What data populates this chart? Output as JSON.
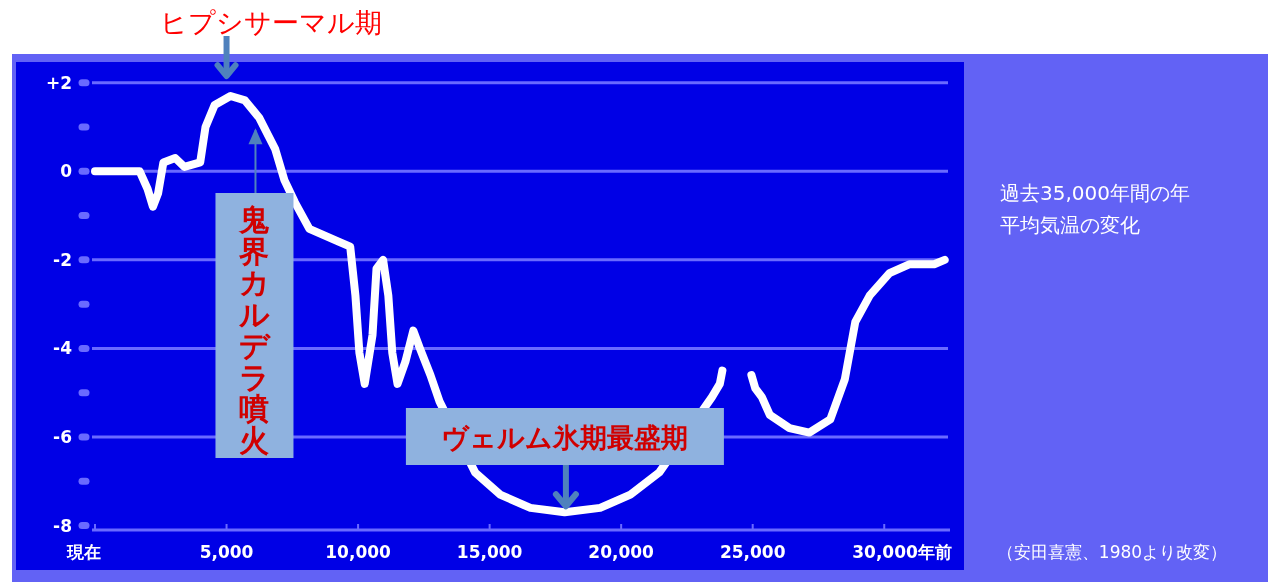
{
  "chart_data": {
    "type": "line",
    "title": "過去35,000年間の年平均気温の変化",
    "series": [
      {
        "color": "#ffffff",
        "x": [
          0,
          1700,
          2000,
          2200,
          2400,
          2600,
          3050,
          3400,
          4000,
          4200,
          4550,
          5150,
          5700,
          6250,
          6850,
          7200,
          7600,
          8150,
          9300,
          9700,
          9900,
          10050,
          10250,
          10550,
          10700,
          10950,
          11150,
          11300,
          11500,
          11800,
          12100,
          12350,
          12750,
          13100,
          14450,
          15400,
          16550,
          17850,
          19200,
          20350,
          21450,
          23450,
          23750,
          23850
        ],
        "values": [
          0,
          0,
          -0.4,
          -0.8,
          -0.5,
          0.2,
          0.3,
          0.1,
          0.2,
          1.0,
          1.5,
          1.7,
          1.6,
          1.2,
          0.5,
          -0.2,
          -0.7,
          -1.3,
          -1.6,
          -1.7,
          -2.8,
          -4.1,
          -4.8,
          -3.7,
          -2.2,
          -2.0,
          -2.8,
          -4.1,
          -4.8,
          -4.3,
          -3.6,
          -4.0,
          -4.6,
          -5.2,
          -6.8,
          -7.3,
          -7.6,
          -7.7,
          -7.6,
          -7.3,
          -6.8,
          -5.1,
          -4.8,
          -4.5
        ]
      },
      {
        "color": "#ffffff",
        "x": [
          24950,
          25100,
          25350,
          25650,
          26400,
          27150,
          27950,
          28500,
          28900,
          29450,
          30200,
          30950,
          31900,
          32300
        ],
        "values": [
          -4.6,
          -4.9,
          -5.1,
          -5.5,
          -5.8,
          -5.9,
          -5.6,
          -4.7,
          -3.4,
          -2.8,
          -2.3,
          -2.1,
          -2.1,
          -2.0
        ]
      }
    ],
    "xlim": [
      0,
      32500
    ],
    "ylim": [
      -8.1,
      2.4
    ],
    "xticks": [
      {
        "value": 0,
        "label": "現在"
      },
      {
        "value": 5000,
        "label": "5,000"
      },
      {
        "value": 10000,
        "label": "10,000"
      },
      {
        "value": 15000,
        "label": "15,000"
      },
      {
        "value": 20000,
        "label": "20,000"
      },
      {
        "value": 25000,
        "label": "25,000"
      },
      {
        "value": 30000,
        "label": "30,000年前"
      }
    ],
    "yticks": [
      {
        "value": -8,
        "label": "-8"
      },
      {
        "value": -7,
        "label": null
      },
      {
        "value": -6,
        "label": "-6"
      },
      {
        "value": -5,
        "label": null
      },
      {
        "value": -4,
        "label": "-4"
      },
      {
        "value": -3,
        "label": null
      },
      {
        "value": -2,
        "label": "-2"
      },
      {
        "value": -1,
        "label": null
      },
      {
        "value": 0,
        "label": "0"
      },
      {
        "value": 1,
        "label": null
      },
      {
        "value": 2,
        "label": "+2"
      }
    ],
    "grid": "y",
    "marker": "none",
    "line_style": "solid",
    "annotations": [
      {
        "text": "ヒプシサーマル期",
        "x": 5000,
        "y": 1.7
      },
      {
        "text": "鬼界カルデラ噴火",
        "x": 6100,
        "y": 1.2
      },
      {
        "text": "ヴェルム氷期最盛期",
        "x": 17900,
        "y": -7.7
      },
      "（安田喜憲、1980より改変）"
    ]
  }
}
